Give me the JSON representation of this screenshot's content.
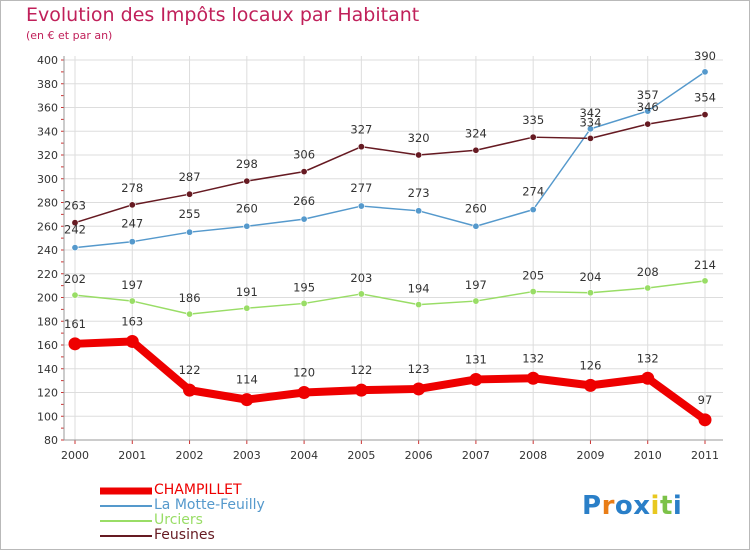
{
  "chart_data": {
    "type": "line",
    "title": "Evolution des Impôts locaux par Habitant",
    "subtitle": "(en € et par an)",
    "x": [
      "2000",
      "2001",
      "2002",
      "2003",
      "2004",
      "2005",
      "2006",
      "2007",
      "2008",
      "2009",
      "2010",
      "2011"
    ],
    "ylim": [
      80,
      400
    ],
    "yticks": [
      80,
      100,
      120,
      140,
      160,
      180,
      200,
      220,
      240,
      260,
      280,
      300,
      320,
      340,
      360,
      380,
      400
    ],
    "grid": true,
    "legend_position": "bottom-left",
    "series": [
      {
        "name": "CHAMPILLET",
        "color": "#ee0000",
        "values": [
          161,
          163,
          122,
          114,
          120,
          122,
          123,
          131,
          132,
          126,
          132,
          97
        ]
      },
      {
        "name": "La Motte-Feuilly",
        "color": "#5599cc",
        "values": [
          242,
          247,
          255,
          260,
          266,
          277,
          273,
          260,
          274,
          342,
          357,
          390
        ]
      },
      {
        "name": "Urciers",
        "color": "#99dd66",
        "values": [
          202,
          197,
          186,
          191,
          195,
          203,
          194,
          197,
          205,
          204,
          208,
          214
        ]
      },
      {
        "name": "Feusines",
        "color": "#661a22",
        "values": [
          263,
          278,
          287,
          298,
          306,
          327,
          320,
          324,
          335,
          334,
          346,
          354
        ]
      }
    ]
  },
  "logo": {
    "text": "Proxiti",
    "letters": [
      "P",
      "r",
      "o",
      "x",
      "i",
      "t",
      "i"
    ],
    "colors": [
      "#2a7fc8",
      "#e97d16",
      "#2a7fc8",
      "#2a7fc8",
      "#e8c820",
      "#7cc248",
      "#2a7fc8"
    ]
  }
}
